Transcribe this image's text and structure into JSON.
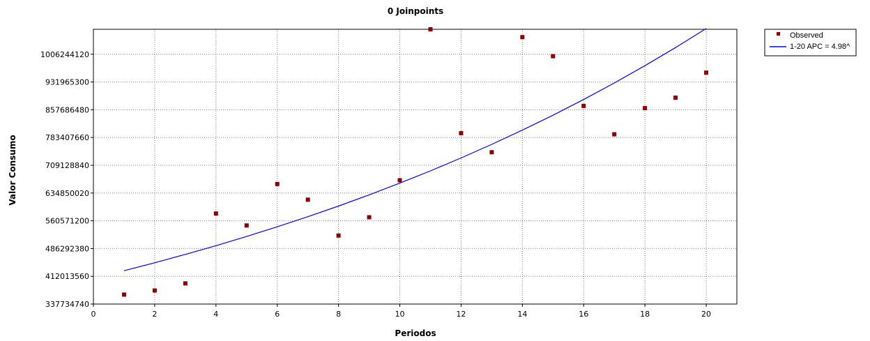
{
  "chart_data": {
    "type": "scatter",
    "title": "0 Joinpoints",
    "xlabel": "Periodos",
    "ylabel": "Valor Consumo",
    "xlim": [
      0,
      21
    ],
    "ylim": [
      337734740,
      1073000000
    ],
    "x_ticks": [
      0,
      2,
      4,
      6,
      8,
      10,
      12,
      14,
      16,
      18,
      20
    ],
    "y_ticks": [
      337734740,
      412013560,
      486292380,
      560571200,
      634850020,
      709128840,
      783407660,
      857686480,
      931965300,
      1006244120
    ],
    "y_tick_labels": [
      "337734740",
      "412013560",
      "486292380",
      "560571200",
      "634850020",
      "709128840",
      "783407660",
      "857686480",
      "931965300",
      "1006244120"
    ],
    "grid": true,
    "legend_position": "right",
    "series": [
      {
        "name": "Observed",
        "kind": "scatter",
        "color": "#8b0000",
        "x": [
          1,
          2,
          3,
          4,
          5,
          6,
          7,
          8,
          9,
          10,
          11,
          12,
          13,
          14,
          15,
          16,
          17,
          18,
          19,
          20
        ],
        "y": [
          363000000,
          374000000,
          393000000,
          580000000,
          548000000,
          659000000,
          617000000,
          521000000,
          570000000,
          669000000,
          1073000000,
          795000000,
          744000000,
          1052000000,
          1001000000,
          868000000,
          792000000,
          862000000,
          890000000,
          957000000
        ]
      },
      {
        "name": "1-20 APC  = 4.98^",
        "kind": "line",
        "color": "#0000ff",
        "x": [
          1,
          2,
          3,
          4,
          5,
          6,
          7,
          8,
          9,
          10,
          11,
          12,
          13,
          14,
          15,
          16,
          17,
          18,
          19,
          20
        ],
        "y": [
          427000000,
          448260000,
          470580000,
          494020000,
          518620000,
          544450000,
          571560000,
          600020000,
          629900000,
          661270000,
          694200000,
          728770000,
          765070000,
          803170000,
          843170000,
          885160000,
          929240000,
          975510000,
          1024100000,
          1075100000
        ]
      }
    ]
  }
}
